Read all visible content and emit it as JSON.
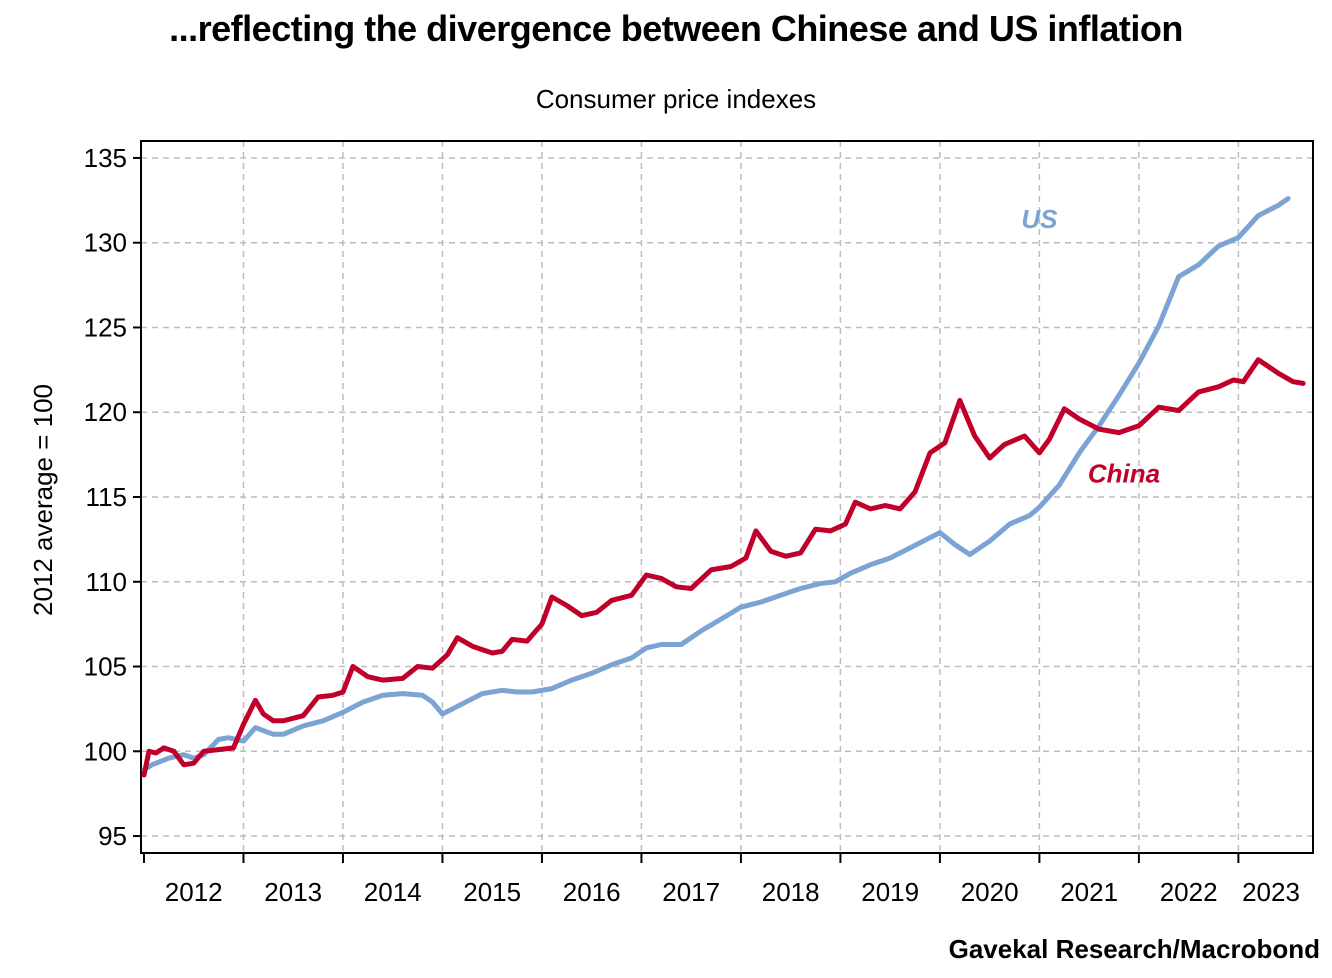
{
  "chart_data": {
    "type": "line",
    "title": "...reflecting the divergence between Chinese and US inflation",
    "subtitle": "Consumer price indexes",
    "ylabel": "2012 average = 100",
    "xlabel": "",
    "source": "Gavekal Research/Macrobond",
    "ylim": [
      94,
      136
    ],
    "yticks": [
      95,
      100,
      105,
      110,
      115,
      120,
      125,
      130,
      135
    ],
    "xlim": [
      2012.0,
      2023.75
    ],
    "xticks": [
      "2012",
      "2013",
      "2014",
      "2015",
      "2016",
      "2017",
      "2018",
      "2019",
      "2020",
      "2021",
      "2022",
      "2023"
    ],
    "grid": true,
    "colors": {
      "US": "#7ba3d4",
      "China": "#c0002a"
    },
    "series": [
      {
        "name": "US",
        "x": [
          2012.0,
          2012.08,
          2012.25,
          2012.4,
          2012.5,
          2012.6,
          2012.75,
          2012.85,
          2013.0,
          2013.12,
          2013.3,
          2013.4,
          2013.6,
          2013.8,
          2014.0,
          2014.2,
          2014.4,
          2014.6,
          2014.8,
          2014.9,
          2015.0,
          2015.2,
          2015.4,
          2015.6,
          2015.75,
          2015.9,
          2016.1,
          2016.3,
          2016.5,
          2016.7,
          2016.9,
          2017.05,
          2017.2,
          2017.4,
          2017.6,
          2017.8,
          2018.0,
          2018.2,
          2018.4,
          2018.6,
          2018.8,
          2018.95,
          2019.1,
          2019.3,
          2019.5,
          2019.7,
          2019.9,
          2020.0,
          2020.15,
          2020.3,
          2020.5,
          2020.7,
          2020.9,
          2021.0,
          2021.2,
          2021.4,
          2021.6,
          2021.8,
          2022.0,
          2022.2,
          2022.4,
          2022.6,
          2022.8,
          2023.0,
          2023.2,
          2023.4,
          2023.5
        ],
        "values": [
          98.9,
          99.2,
          99.6,
          99.8,
          99.6,
          99.8,
          100.7,
          100.8,
          100.6,
          101.4,
          101.0,
          101.0,
          101.5,
          101.8,
          102.3,
          102.9,
          103.3,
          103.4,
          103.3,
          102.9,
          102.2,
          102.8,
          103.4,
          103.6,
          103.5,
          103.5,
          103.7,
          104.2,
          104.6,
          105.1,
          105.5,
          106.1,
          106.3,
          106.3,
          107.1,
          107.8,
          108.5,
          108.8,
          109.2,
          109.6,
          109.9,
          110.0,
          110.5,
          111.0,
          111.4,
          112.0,
          112.6,
          112.9,
          112.2,
          111.6,
          112.4,
          113.4,
          113.9,
          114.4,
          115.7,
          117.6,
          119.2,
          121.0,
          122.9,
          125.1,
          128.0,
          128.7,
          129.8,
          130.3,
          131.6,
          132.2,
          132.6
        ]
      },
      {
        "name": "China",
        "x": [
          2012.0,
          2012.05,
          2012.12,
          2012.2,
          2012.3,
          2012.4,
          2012.5,
          2012.6,
          2012.75,
          2012.9,
          2013.0,
          2013.12,
          2013.2,
          2013.3,
          2013.4,
          2013.6,
          2013.75,
          2013.9,
          2014.0,
          2014.1,
          2014.25,
          2014.4,
          2014.6,
          2014.75,
          2014.9,
          2015.05,
          2015.15,
          2015.3,
          2015.5,
          2015.6,
          2015.7,
          2015.85,
          2016.0,
          2016.1,
          2016.25,
          2016.4,
          2016.55,
          2016.7,
          2016.9,
          2017.05,
          2017.2,
          2017.35,
          2017.5,
          2017.7,
          2017.9,
          2018.05,
          2018.15,
          2018.3,
          2018.45,
          2018.6,
          2018.75,
          2018.9,
          2019.05,
          2019.15,
          2019.3,
          2019.45,
          2019.6,
          2019.75,
          2019.9,
          2020.05,
          2020.2,
          2020.35,
          2020.5,
          2020.65,
          2020.85,
          2021.0,
          2021.1,
          2021.25,
          2021.4,
          2021.6,
          2021.8,
          2022.0,
          2022.2,
          2022.4,
          2022.6,
          2022.8,
          2022.95,
          2023.05,
          2023.2,
          2023.4,
          2023.55,
          2023.65
        ],
        "values": [
          98.6,
          100.0,
          99.9,
          100.2,
          100.0,
          99.2,
          99.3,
          100.0,
          100.1,
          100.2,
          101.6,
          103.0,
          102.2,
          101.8,
          101.8,
          102.1,
          103.2,
          103.3,
          103.5,
          105.0,
          104.4,
          104.2,
          104.3,
          105.0,
          104.9,
          105.7,
          106.7,
          106.2,
          105.8,
          105.9,
          106.6,
          106.5,
          107.5,
          109.1,
          108.6,
          108.0,
          108.2,
          108.9,
          109.2,
          110.4,
          110.2,
          109.7,
          109.6,
          110.7,
          110.9,
          111.4,
          113.0,
          111.8,
          111.5,
          111.7,
          113.1,
          113.0,
          113.4,
          114.7,
          114.3,
          114.5,
          114.3,
          115.3,
          117.6,
          118.2,
          120.7,
          118.6,
          117.3,
          118.1,
          118.6,
          117.6,
          118.4,
          120.2,
          119.6,
          119.0,
          118.8,
          119.2,
          120.3,
          120.1,
          121.2,
          121.5,
          121.9,
          121.8,
          123.1,
          122.3,
          121.8,
          121.7
        ]
      }
    ],
    "annotations": [
      {
        "text": "US",
        "series": "US",
        "x": 2021.0,
        "y": 131.4
      },
      {
        "text": "China",
        "series": "China",
        "x": 2021.85,
        "y": 116.4
      }
    ]
  }
}
